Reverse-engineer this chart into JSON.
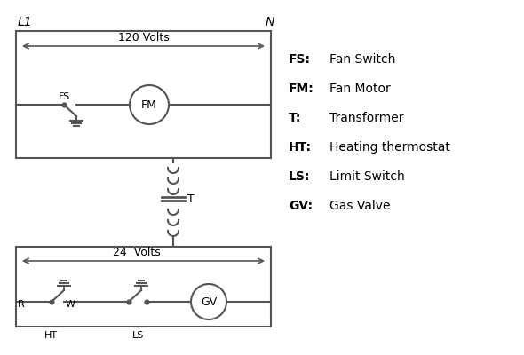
{
  "bg_color": "#ffffff",
  "line_color": "#555555",
  "text_color": "#000000",
  "legend": [
    [
      "FS:",
      "Fan Switch"
    ],
    [
      "FM:",
      "Fan Motor"
    ],
    [
      "T:",
      "Transformer"
    ],
    [
      "HT:",
      "Heating thermostat"
    ],
    [
      "LS:",
      "Limit Switch"
    ],
    [
      "GV:",
      "Gas Valve"
    ]
  ]
}
